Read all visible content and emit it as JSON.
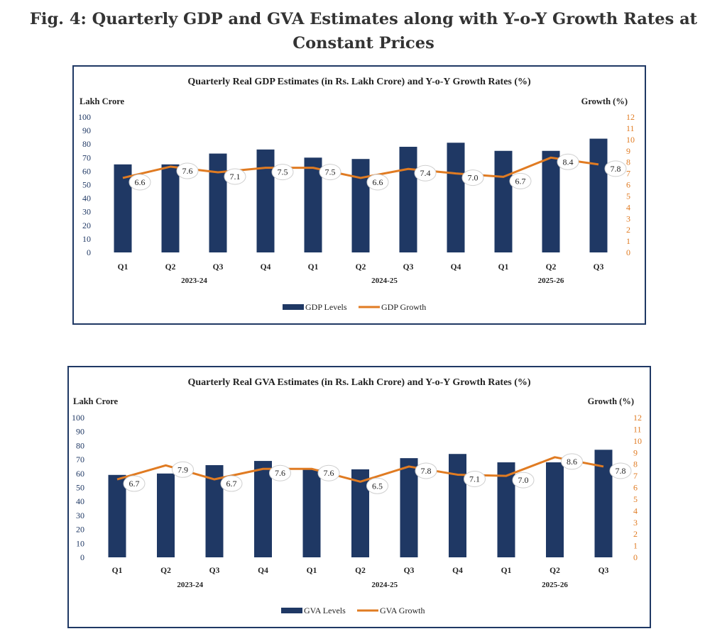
{
  "figure_title": "Fig. 4: Quarterly GDP and GVA Estimates along with Y-o-Y Growth Rates at Constant Prices",
  "colors": {
    "bar": "#1f3864",
    "line": "#e07b22",
    "border": "#1f3864"
  },
  "chart_data": [
    {
      "type": "bar+line",
      "title": "Quarterly Real GDP Estimates (in Rs. Lakh Crore) and Y-o-Y Growth Rates (%)",
      "ylabel_left": "Lakh Crore",
      "ylabel_right": "Growth (%)",
      "ylim_left": [
        0,
        100
      ],
      "ylim_right": [
        0,
        12
      ],
      "yticks_left": [
        0,
        10,
        20,
        30,
        40,
        50,
        60,
        70,
        80,
        90,
        100
      ],
      "yticks_right": [
        0,
        1,
        2,
        3,
        4,
        5,
        6,
        7,
        8,
        9,
        10,
        11,
        12
      ],
      "categories": [
        "Q1",
        "Q2",
        "Q3",
        "Q4",
        "Q1",
        "Q2",
        "Q3",
        "Q4",
        "Q1",
        "Q2",
        "Q3"
      ],
      "year_groups": [
        {
          "label": "2023-24",
          "start": 0,
          "end": 3
        },
        {
          "label": "2024-25",
          "start": 4,
          "end": 7
        },
        {
          "label": "2025-26",
          "start": 8,
          "end": 10
        }
      ],
      "series": [
        {
          "name": "GDP Levels",
          "type": "bar",
          "axis": "left",
          "values": [
            65,
            65,
            73,
            76,
            70,
            69,
            78,
            81,
            75,
            75,
            84
          ]
        },
        {
          "name": "GDP Growth",
          "type": "line",
          "axis": "right",
          "values": [
            6.6,
            7.6,
            7.1,
            7.5,
            7.5,
            6.6,
            7.4,
            7.0,
            6.7,
            8.4,
            7.8
          ],
          "labels": [
            "6.6",
            "7.6",
            "7.1",
            "7.5",
            "7.5",
            "6.6",
            "7.4",
            "7.0",
            "6.7",
            "8.4",
            "7.8"
          ]
        }
      ],
      "legend": [
        "GDP Levels",
        "GDP Growth"
      ]
    },
    {
      "type": "bar+line",
      "title": "Quarterly Real GVA Estimates (in Rs. Lakh Crore) and Y-o-Y Growth Rates (%)",
      "ylabel_left": "Lakh Crore",
      "ylabel_right": "Growth (%)",
      "ylim_left": [
        0,
        100
      ],
      "ylim_right": [
        0,
        12
      ],
      "yticks_left": [
        0,
        10,
        20,
        30,
        40,
        50,
        60,
        70,
        80,
        90,
        100
      ],
      "yticks_right": [
        0,
        1,
        2,
        3,
        4,
        5,
        6,
        7,
        8,
        9,
        10,
        11,
        12
      ],
      "categories": [
        "Q1",
        "Q2",
        "Q3",
        "Q4",
        "Q1",
        "Q2",
        "Q3",
        "Q4",
        "Q1",
        "Q2",
        "Q3"
      ],
      "year_groups": [
        {
          "label": "2023-24",
          "start": 0,
          "end": 3
        },
        {
          "label": "2024-25",
          "start": 4,
          "end": 7
        },
        {
          "label": "2025-26",
          "start": 8,
          "end": 10
        }
      ],
      "series": [
        {
          "name": "GVA Levels",
          "type": "bar",
          "axis": "left",
          "values": [
            59,
            60,
            66,
            69,
            63,
            63,
            71,
            74,
            68,
            68,
            77
          ]
        },
        {
          "name": "GVA Growth",
          "type": "line",
          "axis": "right",
          "values": [
            6.7,
            7.9,
            6.7,
            7.6,
            7.6,
            6.5,
            7.8,
            7.1,
            7.0,
            8.6,
            7.8
          ],
          "labels": [
            "6.7",
            "7.9",
            "6.7",
            "7.6",
            "7.6",
            "6.5",
            "7.8",
            "7.1",
            "7.0",
            "8.6",
            "7.8"
          ]
        }
      ],
      "legend": [
        "GVA Levels",
        "GVA Growth"
      ]
    }
  ]
}
